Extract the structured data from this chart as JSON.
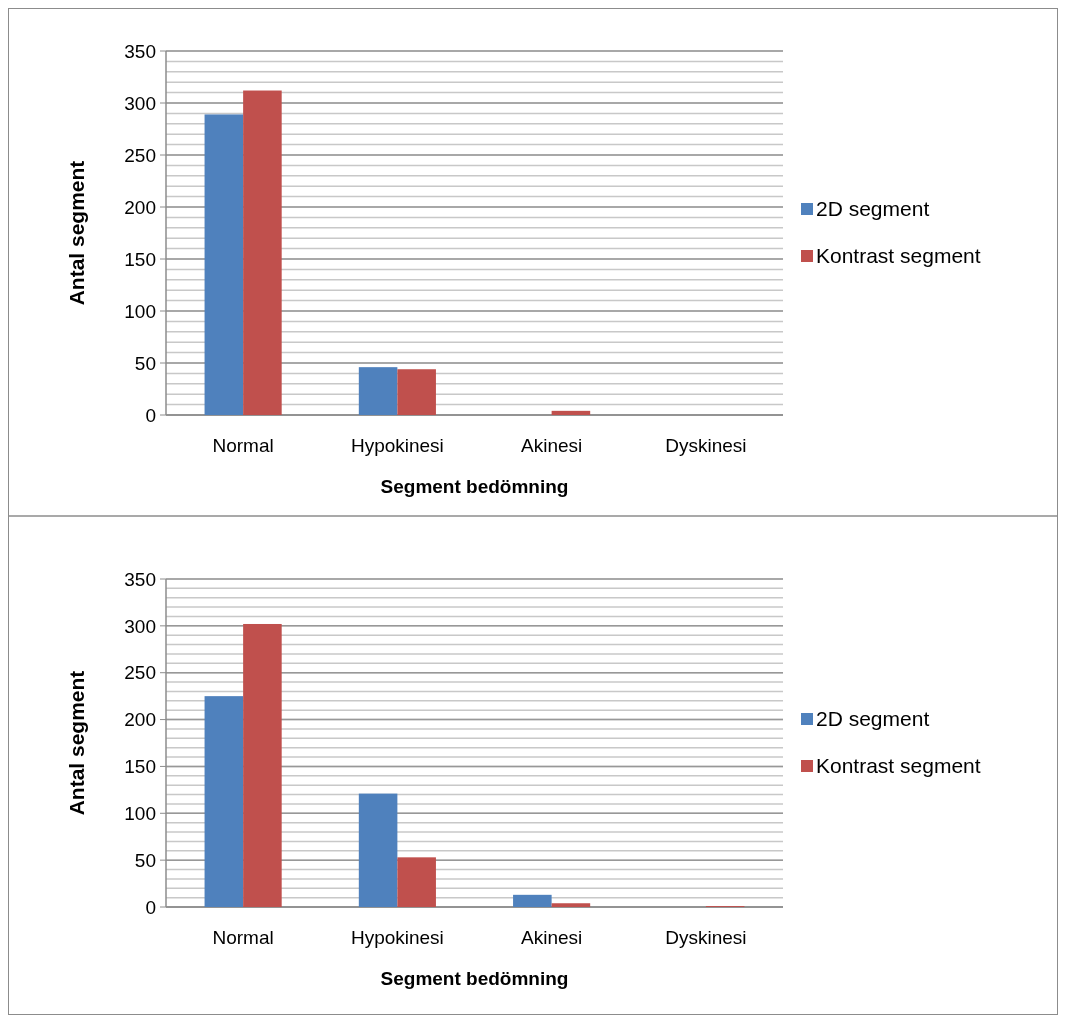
{
  "chart_data": [
    {
      "type": "bar",
      "categories": [
        "Normal",
        "Hypokinesi",
        "Akinesi",
        "Dyskinesi"
      ],
      "xlabel": "Segment bedömning",
      "ylabel": "Antal segment",
      "series": [
        {
          "name": "2D segment",
          "color": "#4f81bd",
          "values": [
            289,
            46,
            0,
            0
          ]
        },
        {
          "name": "Kontrast segment",
          "color": "#c0504d",
          "values": [
            312,
            44,
            4,
            0
          ]
        }
      ],
      "ylim": [
        0,
        350
      ],
      "yticks": [
        0,
        50,
        100,
        150,
        200,
        250,
        300,
        350
      ],
      "grid": true,
      "legend": "right"
    },
    {
      "type": "bar",
      "categories": [
        "Normal",
        "Hypokinesi",
        "Akinesi",
        "Dyskinesi"
      ],
      "xlabel": "Segment bedömning",
      "ylabel": "Antal segment",
      "series": [
        {
          "name": "2D segment",
          "color": "#4f81bd",
          "values": [
            225,
            121,
            13,
            0
          ]
        },
        {
          "name": "Kontrast segment",
          "color": "#c0504d",
          "values": [
            302,
            53,
            4,
            1
          ]
        }
      ],
      "ylim": [
        0,
        350
      ],
      "yticks": [
        0,
        50,
        100,
        150,
        200,
        250,
        300,
        350
      ],
      "grid": true,
      "legend": "right"
    }
  ]
}
